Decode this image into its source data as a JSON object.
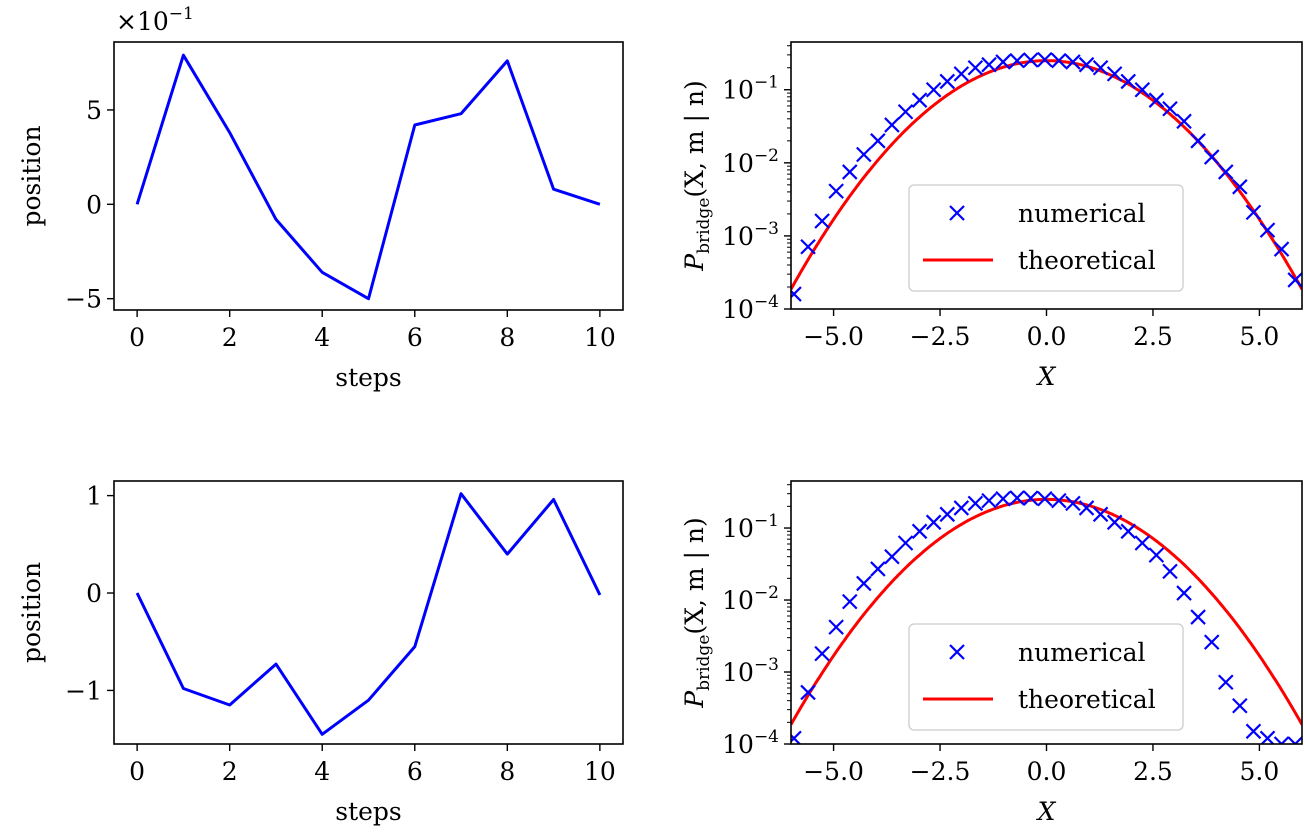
{
  "chart_data": [
    {
      "type": "line",
      "panel": "top-left",
      "xlabel": "steps",
      "ylabel": "position",
      "offset_text": "×10",
      "offset_exponent": "−1",
      "x": [
        0,
        1,
        2,
        3,
        4,
        5,
        6,
        7,
        8,
        9,
        10
      ],
      "series": [
        {
          "values": [
            0,
            7.9,
            3.8,
            -0.8,
            -3.6,
            -5.0,
            4.2,
            4.8,
            7.6,
            0.8,
            0
          ]
        }
      ],
      "xlim": [
        -0.5,
        10.5
      ],
      "ylim": [
        -5.6,
        8.6
      ],
      "xticks": [
        0,
        2,
        4,
        6,
        8,
        10
      ],
      "xtick_labels": [
        "0",
        "2",
        "4",
        "6",
        "8",
        "10"
      ],
      "yticks": [
        -5,
        0,
        5
      ],
      "ytick_labels": [
        "−5",
        "0",
        "5"
      ],
      "grid": false,
      "color": "#0000ff"
    },
    {
      "type": "line",
      "panel": "top-right",
      "xlabel": "X",
      "ylabel_main": "P",
      "ylabel_sub": "bridge",
      "ylabel_args": "(X, m | n)",
      "yscale": "log",
      "xlim": [
        -6.0,
        6.0
      ],
      "ylim": [
        0.0001,
        0.45
      ],
      "xticks": [
        -5.0,
        -2.5,
        0.0,
        2.5,
        5.0
      ],
      "xtick_labels": [
        "−5.0",
        "−2.5",
        "0.0",
        "2.5",
        "5.0"
      ],
      "yticks": [
        0.0001,
        0.001,
        0.01,
        0.1
      ],
      "ytick_exponents": [
        "−4",
        "−3",
        "−2",
        "−1"
      ],
      "legend": {
        "position": "lower-center",
        "entries": [
          "numerical",
          "theoretical"
        ]
      },
      "series": [
        {
          "name": "numerical",
          "marker": "x",
          "color": "#0000ff",
          "x": [
            -5.93,
            -5.6,
            -5.27,
            -4.94,
            -4.62,
            -4.29,
            -3.96,
            -3.63,
            -3.31,
            -2.98,
            -2.65,
            -2.33,
            -2.0,
            -1.67,
            -1.35,
            -1.02,
            -0.69,
            -0.37,
            -0.04,
            0.29,
            0.62,
            0.94,
            1.27,
            1.6,
            1.92,
            2.25,
            2.58,
            2.9,
            3.23,
            3.56,
            3.88,
            4.21,
            4.54,
            4.86,
            5.19,
            5.52,
            5.84
          ],
          "values": [
            0.00016,
            0.00071,
            0.0016,
            0.0041,
            0.0075,
            0.013,
            0.02,
            0.033,
            0.05,
            0.072,
            0.1,
            0.13,
            0.165,
            0.2,
            0.22,
            0.24,
            0.25,
            0.255,
            0.258,
            0.25,
            0.24,
            0.22,
            0.2,
            0.165,
            0.13,
            0.1,
            0.072,
            0.055,
            0.037,
            0.02,
            0.012,
            0.0075,
            0.0047,
            0.0021,
            0.0012,
            0.00066,
            0.00025
          ]
        },
        {
          "name": "theoretical",
          "color": "#ff0000",
          "mean": 0.0,
          "variance": 2.5,
          "peak": 0.25
        }
      ]
    },
    {
      "type": "line",
      "panel": "bottom-left",
      "xlabel": "steps",
      "ylabel": "position",
      "x": [
        0,
        1,
        2,
        3,
        4,
        5,
        6,
        7,
        8,
        9,
        10
      ],
      "series": [
        {
          "values": [
            0,
            -0.98,
            -1.15,
            -0.73,
            -1.45,
            -1.1,
            -0.55,
            1.02,
            0.4,
            0.96,
            -0.02
          ]
        }
      ],
      "xlim": [
        -0.5,
        10.5
      ],
      "ylim": [
        -1.55,
        1.15
      ],
      "xticks": [
        0,
        2,
        4,
        6,
        8,
        10
      ],
      "xtick_labels": [
        "0",
        "2",
        "4",
        "6",
        "8",
        "10"
      ],
      "yticks": [
        -1,
        0,
        1
      ],
      "ytick_labels": [
        "−1",
        "0",
        "1"
      ],
      "grid": false,
      "color": "#0000ff"
    },
    {
      "type": "line",
      "panel": "bottom-right",
      "xlabel": "X",
      "ylabel_main": "P",
      "ylabel_sub": "bridge",
      "ylabel_args": "(X, m | n)",
      "yscale": "log",
      "xlim": [
        -6.0,
        6.0
      ],
      "ylim": [
        0.0001,
        0.45
      ],
      "xticks": [
        -5.0,
        -2.5,
        0.0,
        2.5,
        5.0
      ],
      "xtick_labels": [
        "−5.0",
        "−2.5",
        "0.0",
        "2.5",
        "5.0"
      ],
      "yticks": [
        0.0001,
        0.001,
        0.01,
        0.1
      ],
      "ytick_exponents": [
        "−4",
        "−3",
        "−2",
        "−1"
      ],
      "legend": {
        "position": "lower-center",
        "entries": [
          "numerical",
          "theoretical"
        ]
      },
      "series": [
        {
          "name": "numerical",
          "marker": "x",
          "color": "#0000ff",
          "x": [
            -5.93,
            -5.6,
            -5.27,
            -4.94,
            -4.62,
            -4.29,
            -3.96,
            -3.63,
            -3.31,
            -2.98,
            -2.65,
            -2.33,
            -2.0,
            -1.67,
            -1.35,
            -1.02,
            -0.69,
            -0.37,
            -0.04,
            0.29,
            0.62,
            0.94,
            1.27,
            1.6,
            1.92,
            2.25,
            2.58,
            2.9,
            3.23,
            3.56,
            3.88,
            4.21,
            4.54,
            4.86,
            5.19,
            5.52,
            5.84
          ],
          "values": [
            0.00012,
            0.00052,
            0.0018,
            0.0042,
            0.0095,
            0.017,
            0.027,
            0.04,
            0.062,
            0.09,
            0.12,
            0.155,
            0.19,
            0.22,
            0.24,
            0.255,
            0.262,
            0.26,
            0.255,
            0.24,
            0.22,
            0.19,
            0.155,
            0.12,
            0.09,
            0.062,
            0.042,
            0.025,
            0.0125,
            0.0058,
            0.0026,
            0.00072,
            0.00034,
            0.00015,
            0.00012,
            0.0001,
            0.0001
          ]
        },
        {
          "name": "theoretical",
          "color": "#ff0000",
          "mean": 0.0,
          "variance": 2.5,
          "peak": 0.25
        }
      ]
    }
  ]
}
